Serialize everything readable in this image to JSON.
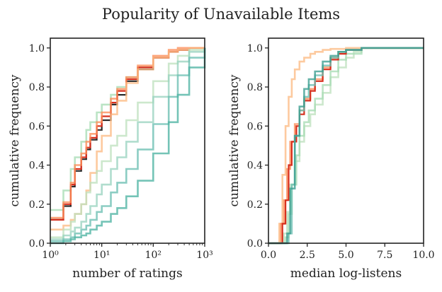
{
  "figure_title": "Popularity of Unavailable Items",
  "colors": {
    "axis": "#222222",
    "series": [
      "#d7301f",
      "#fc8d59",
      "#fdbb84",
      "#a8ddb5",
      "#7bccc4",
      "#43a2ca",
      "#2b8a7e",
      "#4eb3a3"
    ]
  },
  "chart_data": [
    {
      "type": "line",
      "step": true,
      "title": "",
      "xlabel": "number of ratings",
      "ylabel": "cumulative frequency",
      "xscale": "log",
      "xlim": [
        1,
        1000
      ],
      "ylim": [
        0.0,
        1.05
      ],
      "xticks": [
        1,
        10,
        100,
        1000
      ],
      "xtick_labels": [
        "10⁰",
        "10¹",
        "10²",
        "10³"
      ],
      "yticks": [
        0.0,
        0.2,
        0.4,
        0.6,
        0.8,
        1.0
      ],
      "ytick_labels": [
        "0.0",
        "0.2",
        "0.4",
        "0.6",
        "0.8",
        "1.0"
      ],
      "series": [
        {
          "name": "",
          "color": "#a8ddb5",
          "x": [
            1,
            1.8,
            2.5,
            3,
            4,
            5,
            6,
            8,
            10,
            15,
            20,
            30,
            50,
            100,
            200,
            300,
            500,
            1000
          ],
          "y": [
            0.17,
            0.27,
            0.38,
            0.44,
            0.52,
            0.58,
            0.62,
            0.67,
            0.71,
            0.76,
            0.8,
            0.85,
            0.9,
            0.95,
            0.98,
            0.99,
            1.0,
            1.0
          ]
        },
        {
          "name": "",
          "color": "#2b2b2b",
          "x": [
            1,
            1.8,
            2.5,
            3,
            4,
            5,
            6,
            8,
            10,
            15,
            20,
            30,
            50,
            100,
            200,
            300,
            500,
            1000
          ],
          "y": [
            0.12,
            0.19,
            0.29,
            0.37,
            0.43,
            0.48,
            0.53,
            0.58,
            0.63,
            0.71,
            0.76,
            0.83,
            0.89,
            0.95,
            0.98,
            0.99,
            1.0,
            1.0
          ]
        },
        {
          "name": "",
          "color": "#d7301f",
          "x": [
            1,
            1.8,
            2.5,
            3,
            4,
            5,
            6,
            8,
            10,
            15,
            20,
            30,
            50,
            100,
            200,
            300,
            500,
            1000
          ],
          "y": [
            0.12,
            0.2,
            0.3,
            0.38,
            0.44,
            0.49,
            0.54,
            0.6,
            0.65,
            0.72,
            0.78,
            0.84,
            0.9,
            0.95,
            0.98,
            0.99,
            1.0,
            1.0
          ]
        },
        {
          "name": "",
          "color": "#fc8d59",
          "x": [
            1,
            1.8,
            2.5,
            3,
            4,
            5,
            6,
            8,
            10,
            15,
            20,
            30,
            50,
            100,
            200,
            300,
            500,
            1000
          ],
          "y": [
            0.13,
            0.21,
            0.31,
            0.4,
            0.46,
            0.52,
            0.56,
            0.62,
            0.67,
            0.74,
            0.79,
            0.85,
            0.91,
            0.96,
            0.99,
            1.0,
            1.0,
            1.0
          ]
        },
        {
          "name": "",
          "color": "#fdbb84",
          "x": [
            1,
            1.8,
            2.5,
            3,
            4,
            5,
            6,
            8,
            10,
            15,
            20,
            30,
            50,
            100,
            200,
            300,
            500,
            1000
          ],
          "y": [
            0.07,
            0.09,
            0.12,
            0.15,
            0.2,
            0.27,
            0.36,
            0.47,
            0.55,
            0.66,
            0.73,
            0.82,
            0.89,
            0.95,
            0.98,
            0.99,
            1.0,
            1.0
          ]
        },
        {
          "name": "",
          "color": "#bfe2bf",
          "x": [
            1,
            1.8,
            2.5,
            3,
            4,
            5,
            6,
            8,
            10,
            15,
            20,
            30,
            50,
            100,
            200,
            300,
            500,
            1000
          ],
          "y": [
            0.03,
            0.07,
            0.11,
            0.15,
            0.2,
            0.26,
            0.31,
            0.37,
            0.42,
            0.5,
            0.55,
            0.63,
            0.72,
            0.83,
            0.92,
            0.96,
            0.99,
            1.0
          ]
        },
        {
          "name": "",
          "color": "#9ad3c0",
          "x": [
            1,
            1.8,
            2.5,
            3,
            4,
            5,
            6,
            8,
            10,
            15,
            20,
            30,
            50,
            100,
            200,
            300,
            500,
            1000
          ],
          "y": [
            0.02,
            0.04,
            0.06,
            0.08,
            0.11,
            0.15,
            0.19,
            0.25,
            0.3,
            0.38,
            0.44,
            0.52,
            0.62,
            0.75,
            0.86,
            0.93,
            0.98,
            1.0
          ]
        },
        {
          "name": "",
          "color": "#6cbfb2",
          "x": [
            1,
            1.8,
            2.5,
            3,
            4,
            5,
            6,
            8,
            10,
            15,
            20,
            30,
            50,
            100,
            200,
            300,
            500,
            1000
          ],
          "y": [
            0.01,
            0.02,
            0.03,
            0.05,
            0.07,
            0.09,
            0.12,
            0.16,
            0.19,
            0.26,
            0.31,
            0.38,
            0.48,
            0.61,
            0.75,
            0.86,
            0.95,
            1.0
          ]
        },
        {
          "name": "",
          "color": "#4eb3a3",
          "x": [
            1,
            1.8,
            2.5,
            3,
            4,
            5,
            6,
            8,
            10,
            15,
            20,
            30,
            50,
            100,
            200,
            300,
            500,
            1000
          ],
          "y": [
            0.0,
            0.01,
            0.02,
            0.03,
            0.04,
            0.05,
            0.07,
            0.09,
            0.11,
            0.15,
            0.18,
            0.24,
            0.32,
            0.46,
            0.62,
            0.76,
            0.9,
            1.0
          ]
        }
      ]
    },
    {
      "type": "line",
      "step": true,
      "title": "",
      "xlabel": "median log-listens",
      "ylabel": "cumulative frequency",
      "xscale": "linear",
      "xlim": [
        0.0,
        10.0
      ],
      "ylim": [
        0.0,
        1.05
      ],
      "xticks": [
        0.0,
        2.5,
        5.0,
        7.5,
        10.0
      ],
      "xtick_labels": [
        "0.0",
        "2.5",
        "5.0",
        "7.5",
        "10.0"
      ],
      "yticks": [
        0.0,
        0.2,
        0.4,
        0.6,
        0.8,
        1.0
      ],
      "ytick_labels": [
        "0.0",
        "0.2",
        "0.4",
        "0.6",
        "0.8",
        "1.0"
      ],
      "series": [
        {
          "name": "",
          "color": "#fdbb84",
          "x": [
            0,
            0.7,
            0.9,
            1.1,
            1.3,
            1.5,
            1.7,
            2.0,
            2.3,
            2.7,
            3.0,
            3.5,
            4.0,
            5.0,
            6.0,
            10.0
          ],
          "y": [
            0.0,
            0.1,
            0.35,
            0.6,
            0.75,
            0.84,
            0.89,
            0.93,
            0.95,
            0.97,
            0.98,
            0.99,
            0.995,
            1.0,
            1.0,
            1.0
          ]
        },
        {
          "name": "",
          "color": "#bfe2bf",
          "x": [
            0,
            1.0,
            1.2,
            1.4,
            1.7,
            2.0,
            2.3,
            2.7,
            3.0,
            3.5,
            4.0,
            4.5,
            5.0,
            5.5,
            6.0,
            10.0
          ],
          "y": [
            0.0,
            0.05,
            0.16,
            0.3,
            0.42,
            0.52,
            0.6,
            0.66,
            0.71,
            0.77,
            0.85,
            0.9,
            0.95,
            0.98,
            1.0,
            1.0
          ]
        },
        {
          "name": "",
          "color": "#a8ddb5",
          "x": [
            0,
            1.1,
            1.3,
            1.5,
            1.8,
            2.0,
            2.3,
            2.6,
            3.0,
            3.5,
            4.0,
            4.5,
            5.0,
            6.0,
            10.0
          ],
          "y": [
            0.0,
            0.03,
            0.15,
            0.3,
            0.45,
            0.55,
            0.62,
            0.68,
            0.74,
            0.81,
            0.88,
            0.94,
            0.97,
            1.0,
            1.0
          ]
        },
        {
          "name": "",
          "color": "#fc8d59",
          "x": [
            0,
            0.8,
            1.0,
            1.2,
            1.4,
            1.7,
            2.0,
            2.3,
            2.7,
            3.0,
            3.5,
            4.0,
            4.5,
            5.0,
            6.0,
            10.0
          ],
          "y": [
            0.0,
            0.1,
            0.22,
            0.38,
            0.52,
            0.61,
            0.68,
            0.74,
            0.79,
            0.84,
            0.9,
            0.95,
            0.98,
            0.99,
            1.0,
            1.0
          ]
        },
        {
          "name": "",
          "color": "#d7301f",
          "x": [
            0,
            0.9,
            1.1,
            1.3,
            1.5,
            1.8,
            2.0,
            2.3,
            2.7,
            3.0,
            3.5,
            4.0,
            4.5,
            5.0,
            6.0,
            10.0
          ],
          "y": [
            0.0,
            0.1,
            0.22,
            0.4,
            0.52,
            0.6,
            0.66,
            0.73,
            0.78,
            0.83,
            0.89,
            0.94,
            0.97,
            0.99,
            1.0,
            1.0
          ]
        },
        {
          "name": "",
          "color": "#6cbfb2",
          "x": [
            0,
            1.3,
            1.5,
            1.7,
            2.0,
            2.3,
            2.6,
            3.0,
            3.5,
            4.0,
            4.5,
            5.0,
            6.0,
            10.0
          ],
          "y": [
            0.0,
            0.05,
            0.3,
            0.55,
            0.68,
            0.75,
            0.81,
            0.86,
            0.91,
            0.95,
            0.98,
            0.99,
            1.0,
            1.0
          ]
        },
        {
          "name": "",
          "color": "#3a9e8f",
          "x": [
            0,
            1.2,
            1.4,
            1.7,
            2.0,
            2.3,
            2.6,
            3.0,
            3.5,
            4.0,
            4.5,
            5.0,
            6.0,
            10.0
          ],
          "y": [
            0.0,
            0.05,
            0.28,
            0.55,
            0.7,
            0.79,
            0.84,
            0.88,
            0.93,
            0.96,
            0.98,
            0.99,
            1.0,
            1.0
          ]
        }
      ]
    }
  ]
}
